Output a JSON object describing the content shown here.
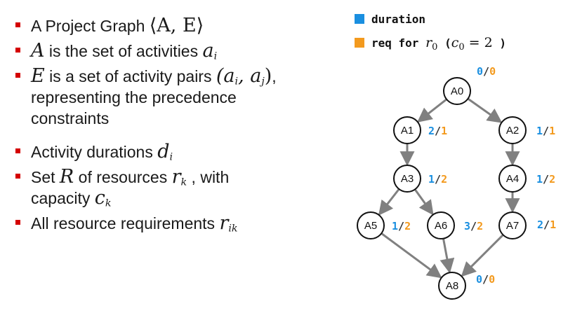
{
  "bullets": [
    {
      "parts": [
        {
          "t": "A Project Graph "
        },
        {
          "m": "⟨A, E⟩",
          "up": true
        }
      ]
    },
    {
      "parts": [
        {
          "m": "A"
        },
        {
          "t": " is the set of activities "
        },
        {
          "m": "a",
          "sub": "i"
        }
      ]
    },
    {
      "parts": [
        {
          "m": "E"
        },
        {
          "t": " is a set of activity pairs "
        },
        {
          "m": "(a",
          "sub": "i"
        },
        {
          "m": ", a",
          "sub": "j"
        },
        {
          "m": ")",
          "up": true
        },
        {
          "t": ","
        }
      ]
    },
    {
      "parts": [
        {
          "t": "representing the precedence"
        }
      ],
      "cont": true
    },
    {
      "parts": [
        {
          "t": "constraints"
        }
      ],
      "cont": true
    },
    {
      "parts": [
        {
          "t": "Activity durations "
        },
        {
          "m": "d",
          "sub": "i"
        }
      ]
    },
    {
      "parts": [
        {
          "t": "Set "
        },
        {
          "m": "R"
        },
        {
          "t": " of resources "
        },
        {
          "m": "r",
          "sub": "k"
        },
        {
          "t": " , with"
        }
      ]
    },
    {
      "parts": [
        {
          "t": "capacity "
        },
        {
          "m": "c",
          "sub": "k"
        }
      ],
      "cont": true
    },
    {
      "parts": [
        {
          "t": "All resource requirements "
        },
        {
          "m": "r",
          "sub": "ik"
        }
      ]
    }
  ],
  "legend": {
    "duration_label": "duration",
    "req_prefix": "req for ",
    "req_math_r": "r",
    "req_math_r_sub": "0",
    "req_paren_open": " (",
    "req_math_c": "c",
    "req_math_c_sub": "0",
    "req_eq": " = 2",
    "req_paren_close": " )"
  },
  "colors": {
    "duration": "#1a8fe0",
    "requirement": "#f39a1e",
    "bullet": "#d40000",
    "edge": "#808080"
  },
  "graph": {
    "nodes": [
      {
        "id": "A0",
        "dur": "0",
        "req": "0"
      },
      {
        "id": "A1",
        "dur": "2",
        "req": "1"
      },
      {
        "id": "A2",
        "dur": "1",
        "req": "1"
      },
      {
        "id": "A3",
        "dur": "1",
        "req": "2"
      },
      {
        "id": "A4",
        "dur": "1",
        "req": "2"
      },
      {
        "id": "A5",
        "dur": "1",
        "req": "2"
      },
      {
        "id": "A6",
        "dur": "3",
        "req": "2"
      },
      {
        "id": "A7",
        "dur": "2",
        "req": "1"
      },
      {
        "id": "A8",
        "dur": "0",
        "req": "0"
      }
    ],
    "edges": [
      [
        "A0",
        "A1"
      ],
      [
        "A0",
        "A2"
      ],
      [
        "A1",
        "A3"
      ],
      [
        "A2",
        "A4"
      ],
      [
        "A3",
        "A5"
      ],
      [
        "A3",
        "A6"
      ],
      [
        "A4",
        "A7"
      ],
      [
        "A5",
        "A8"
      ],
      [
        "A6",
        "A8"
      ],
      [
        "A7",
        "A8"
      ]
    ]
  }
}
